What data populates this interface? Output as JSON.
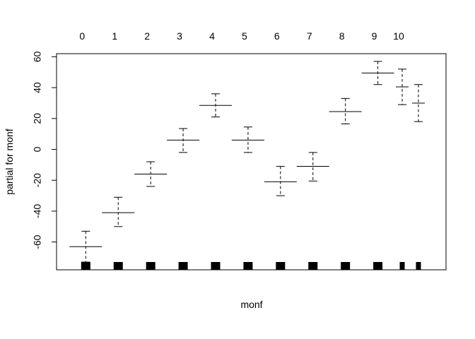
{
  "chart_data": {
    "type": "scatter",
    "xlabel": "monf",
    "ylabel": "partial for monf",
    "ylim": [
      -78,
      62
    ],
    "yticks": [
      -60,
      -40,
      -20,
      0,
      20,
      40,
      60
    ],
    "top_labels": [
      "0",
      "1",
      "2",
      "3",
      "4",
      "5",
      "6",
      "7",
      "8",
      "9",
      "10"
    ],
    "x": [
      1,
      2,
      3,
      4,
      5,
      6,
      7,
      8,
      9,
      10,
      10.75,
      11.25
    ],
    "estimates": [
      -63,
      -41,
      -16,
      6,
      28.5,
      6,
      -21,
      -11,
      24.5,
      49.5,
      40.5,
      30
    ],
    "lower": [
      -73,
      -50,
      -24,
      -2,
      21,
      -2,
      -30,
      -20.5,
      16.5,
      42,
      29,
      18
    ],
    "upper": [
      -53,
      -31,
      -8,
      13.5,
      36,
      14.5,
      -11,
      -2,
      33,
      57,
      52,
      42
    ],
    "grid": false,
    "legend": "none"
  }
}
